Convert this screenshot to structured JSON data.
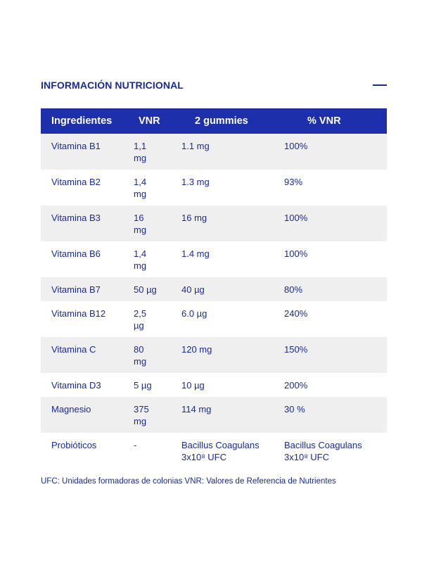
{
  "section": {
    "title": "INFORMACIÓN NUTRICIONAL",
    "collapse_icon": "minus-icon"
  },
  "table": {
    "headers": [
      "Ingredientes",
      "VNR",
      "2 gummies",
      "% VNR"
    ],
    "rows": [
      {
        "ingrediente": "Vitamina B1",
        "vnr": "1,1 mg",
        "dosis": "1.1 mg",
        "pct": "100%"
      },
      {
        "ingrediente": "Vitamina B2",
        "vnr": "1,4 mg",
        "dosis": "1.3 mg",
        "pct": "93%"
      },
      {
        "ingrediente": "Vitamina B3",
        "vnr": "16 mg",
        "dosis": "16 mg",
        "pct": "100%"
      },
      {
        "ingrediente": "Vitamina B6",
        "vnr": "1,4 mg",
        "dosis": "1.4 mg",
        "pct": "100%"
      },
      {
        "ingrediente": "Vitamina B7",
        "vnr": "50 µg",
        "dosis": "40 µg",
        "pct": "80%"
      },
      {
        "ingrediente": "Vitamina B12",
        "vnr": "2,5 µg",
        "dosis": "6.0 µg",
        "pct": "240%"
      },
      {
        "ingrediente": "Vitamina C",
        "vnr": "80 mg",
        "dosis": "120 mg",
        "pct": "150%"
      },
      {
        "ingrediente": "Vitamina D3",
        "vnr": "5 µg",
        "dosis": "10 µg",
        "pct": "200%"
      },
      {
        "ingrediente": "Magnesio",
        "vnr": "375 mg",
        "dosis": "114 mg",
        "pct": "30 %"
      },
      {
        "ingrediente": "Probióticos",
        "vnr": "-",
        "dosis": "Bacillus Coagulans 3x10⁸ UFC",
        "pct": "Bacillus Coagulans 3x10⁸ UFC"
      }
    ]
  },
  "footnote": "UFC: Unidades formadoras de colonias VNR: Valores de Referencia de Nutrientes",
  "colors": {
    "accent": "#1a2a9c",
    "header_bg": "#1e2fab",
    "row_alt_bg": "#efefef"
  }
}
